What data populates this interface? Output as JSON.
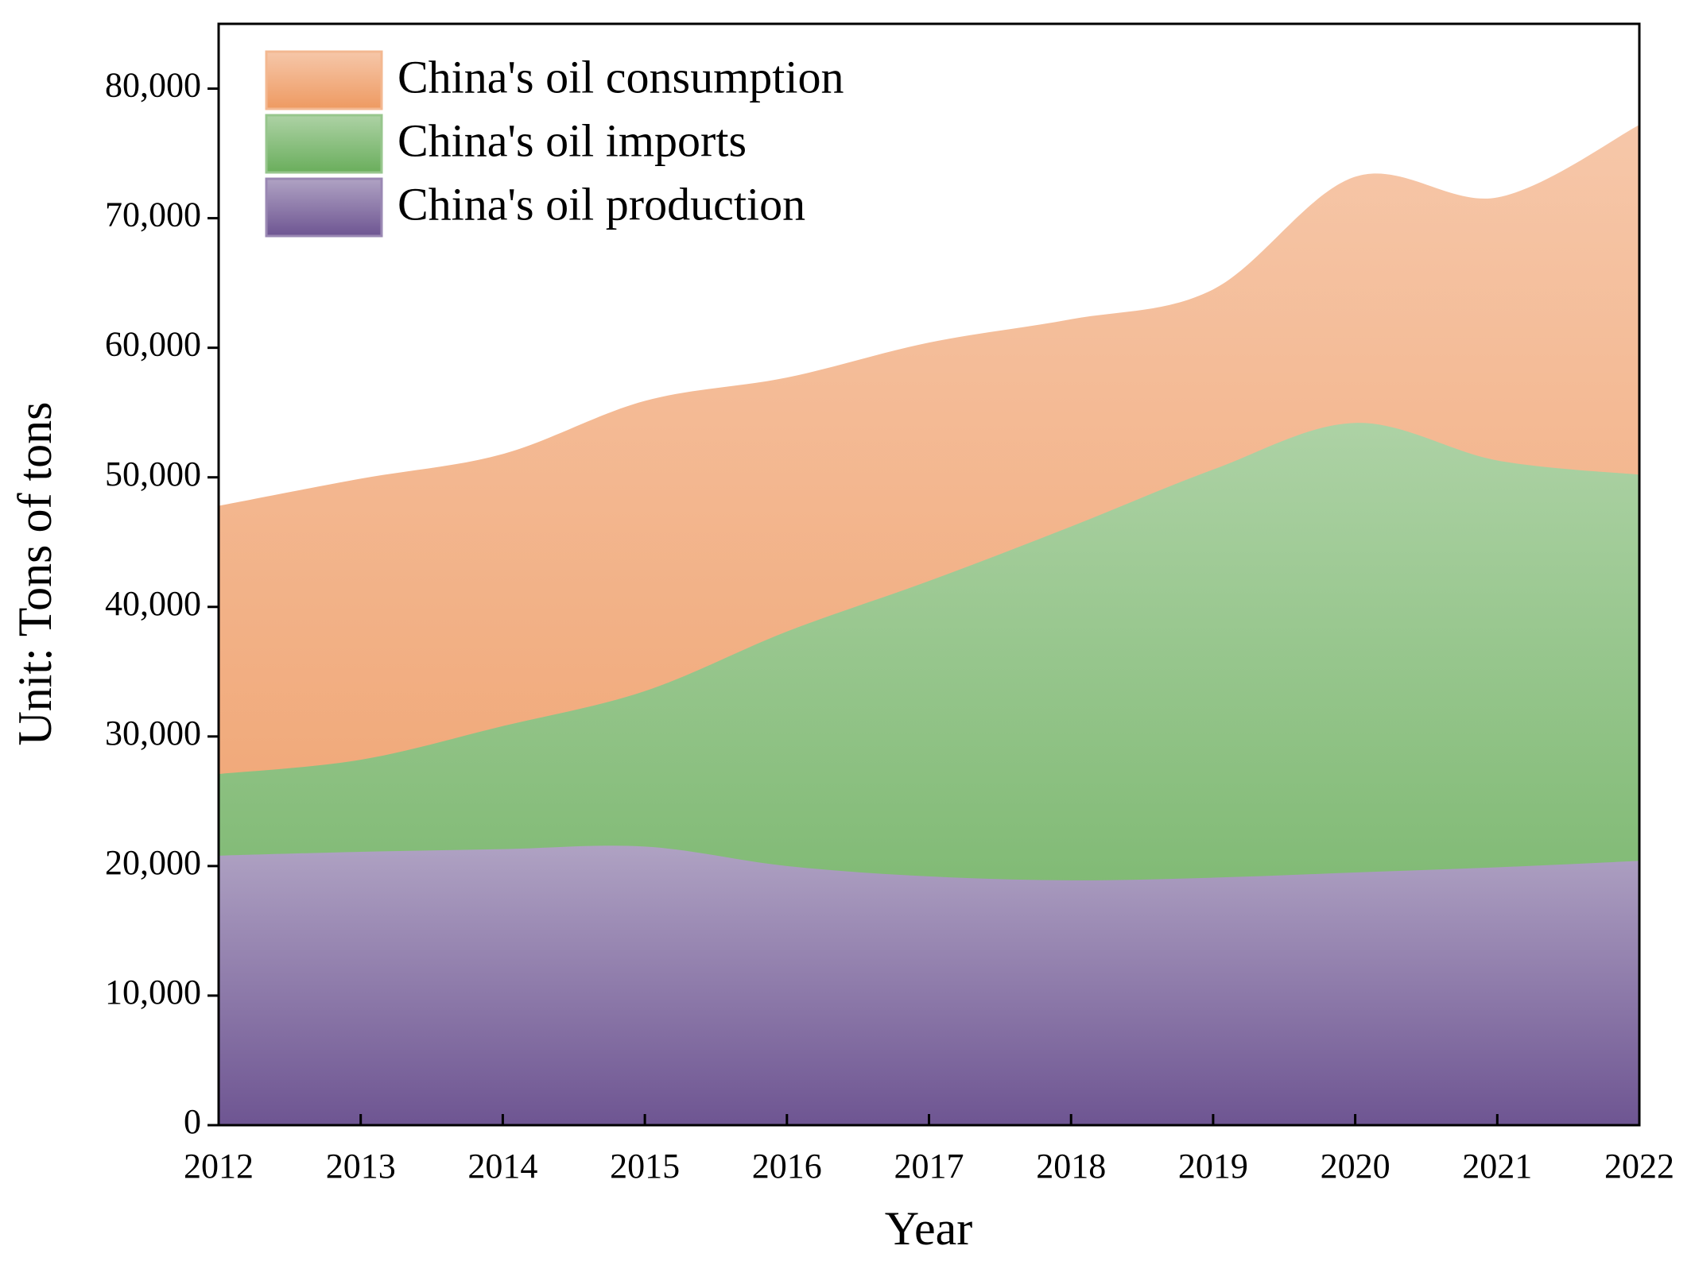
{
  "chart_data": {
    "type": "area",
    "x_label": "Year",
    "y_label": "Unit: Tons of tons",
    "x": [
      2012,
      2013,
      2014,
      2015,
      2016,
      2017,
      2018,
      2019,
      2020,
      2021,
      2022
    ],
    "series": [
      {
        "name": "China's oil consumption",
        "color": "#ee9a62",
        "values": [
          47800,
          49900,
          51800,
          55900,
          57700,
          60400,
          62200,
          64500,
          73200,
          71600,
          77200
        ]
      },
      {
        "name": "China's oil imports",
        "color": "#6aae5c",
        "values": [
          27100,
          28200,
          30800,
          33500,
          38100,
          42000,
          46200,
          50600,
          54200,
          51300,
          50200
        ]
      },
      {
        "name": "China's oil production",
        "color": "#6e5592",
        "values": [
          20800,
          21100,
          21300,
          21500,
          20000,
          19200,
          18900,
          19100,
          19500,
          19900,
          20400
        ]
      }
    ],
    "xlim": [
      2012,
      2022
    ],
    "xticks": [
      2012,
      2013,
      2014,
      2015,
      2016,
      2017,
      2018,
      2019,
      2020,
      2021,
      2022
    ],
    "ylim": [
      0,
      85000
    ],
    "yticks": [
      0,
      {
        "value": 10000,
        "label": "10,000"
      },
      {
        "value": 20000,
        "label": "20,000"
      },
      {
        "value": 30000,
        "label": "30,000"
      },
      {
        "value": 40000,
        "label": "40,000"
      },
      {
        "value": 50000,
        "label": "50,000"
      },
      {
        "value": 60000,
        "label": "60,000"
      },
      {
        "value": 70000,
        "label": "70,000"
      },
      {
        "value": 80000,
        "label": "80,000"
      }
    ],
    "legend": "upper left",
    "grid": false
  }
}
